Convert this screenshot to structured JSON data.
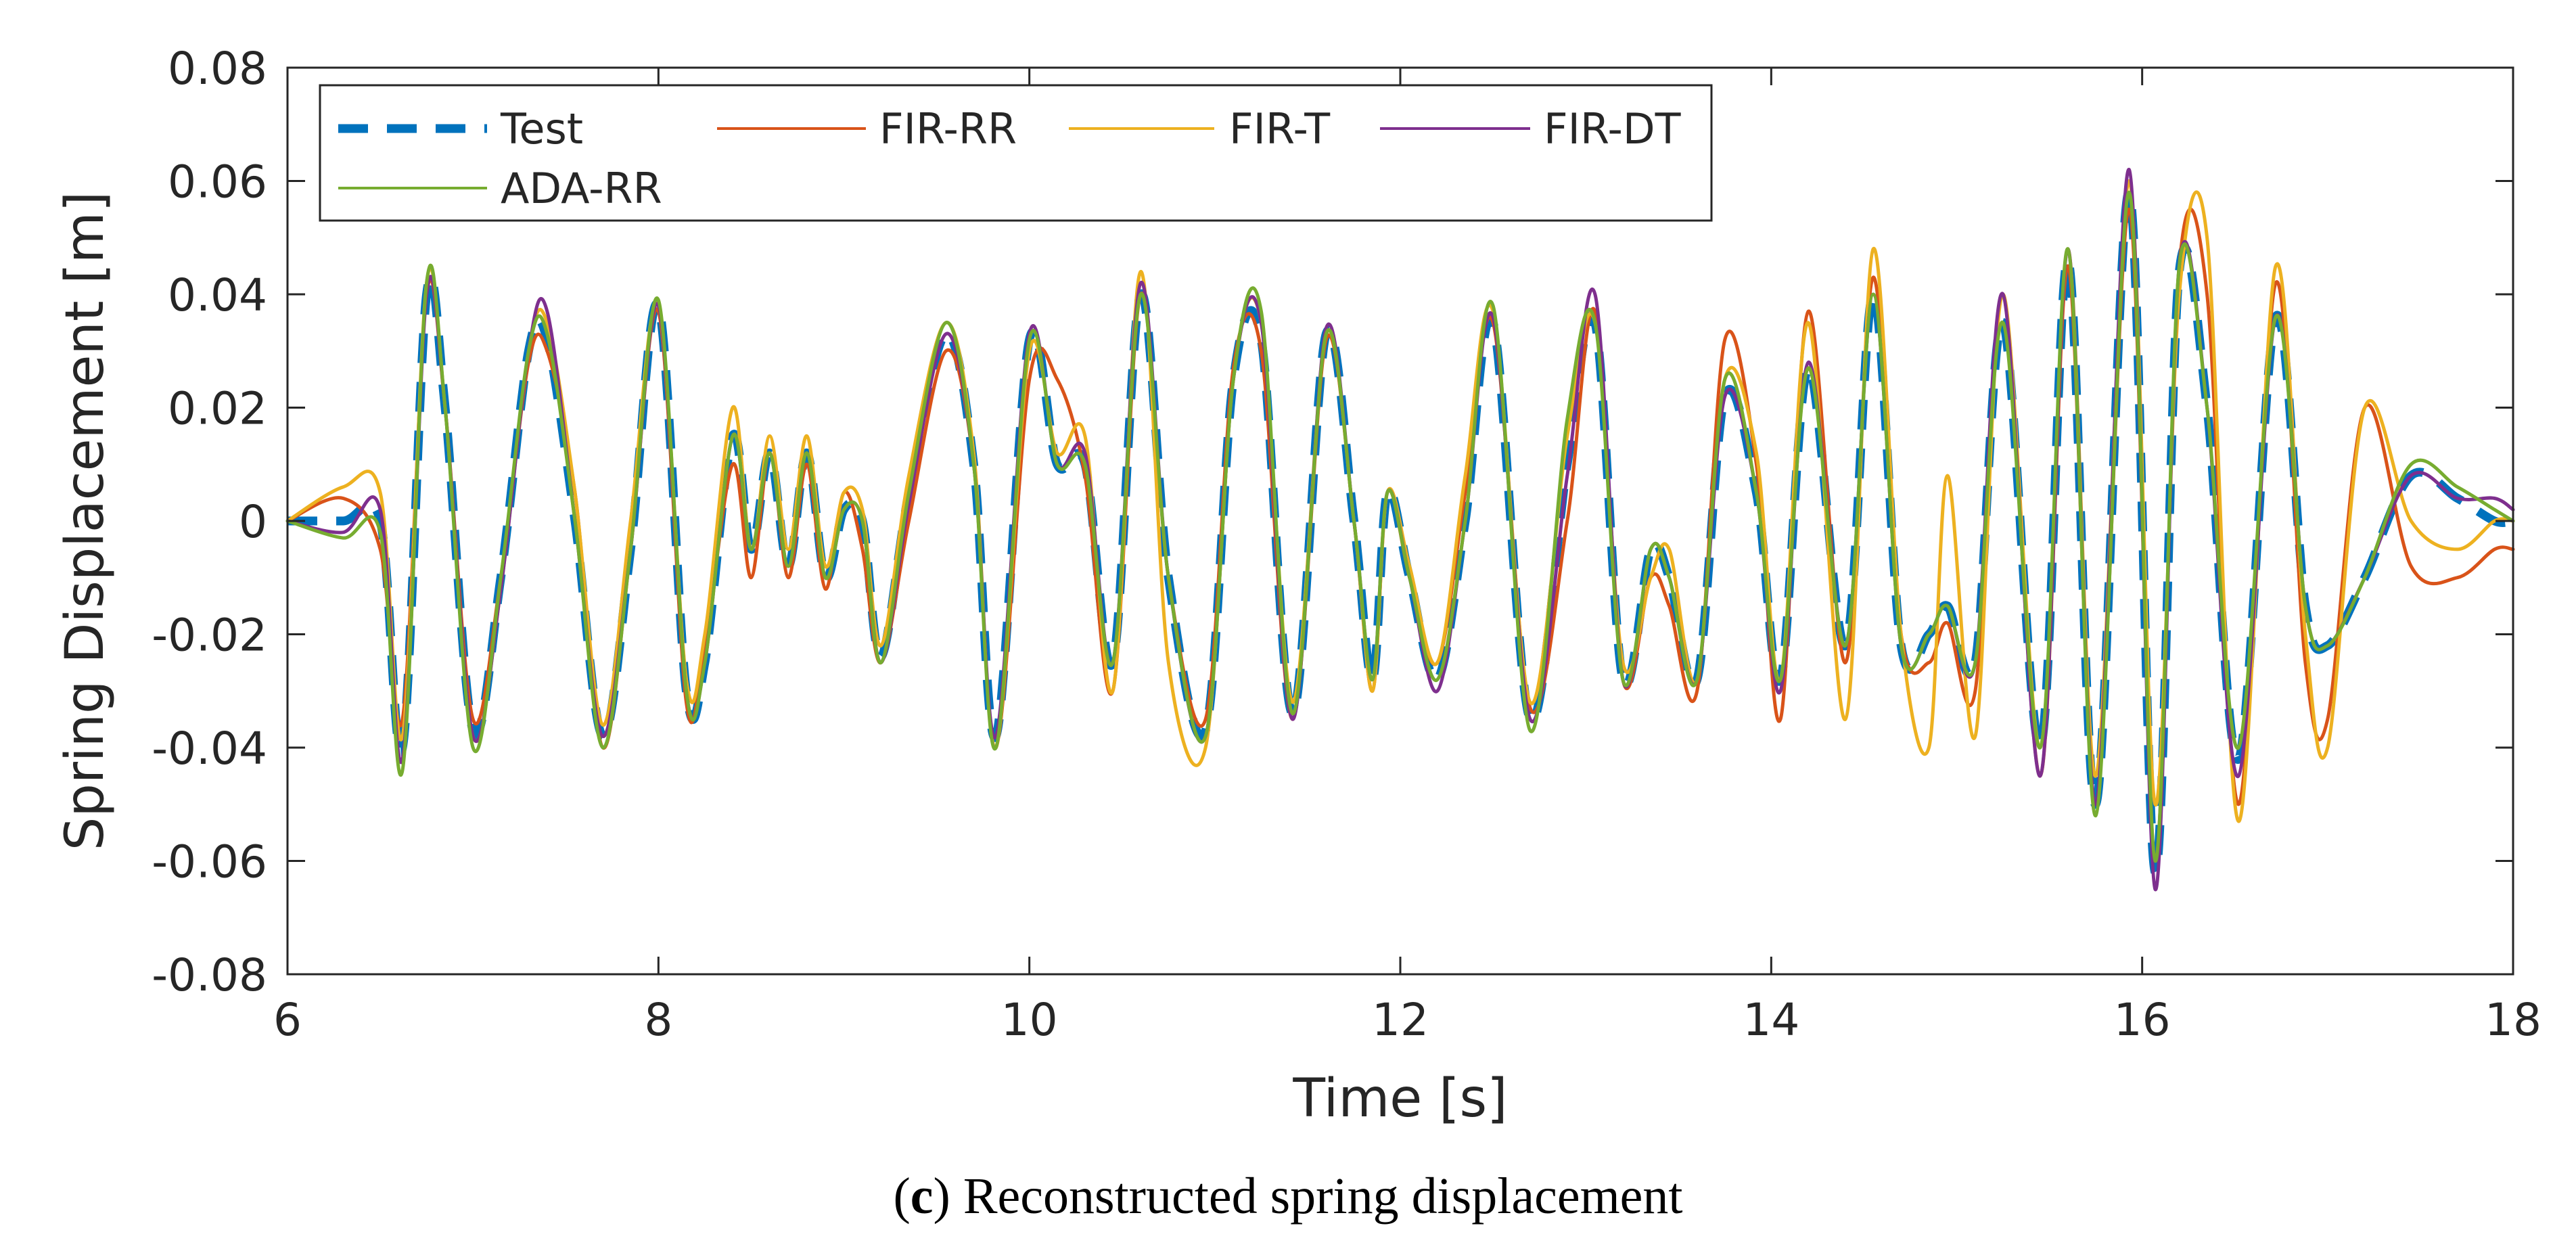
{
  "caption": {
    "letter": "c",
    "text": "Reconstructed spring displacement"
  },
  "chart_data": {
    "type": "line",
    "title": "",
    "xlabel": "Time [s]",
    "ylabel": "Spring Displacement [m]",
    "xlim": [
      6,
      18
    ],
    "ylim": [
      -0.08,
      0.08
    ],
    "xticks": [
      6,
      8,
      10,
      12,
      14,
      16,
      18
    ],
    "xtick_labels": [
      "6",
      "8",
      "10",
      "12",
      "14",
      "16",
      "18"
    ],
    "yticks": [
      -0.08,
      -0.06,
      -0.04,
      -0.02,
      0,
      0.02,
      0.04,
      0.06,
      0.08
    ],
    "ytick_labels": [
      "-0.08",
      "-0.06",
      "-0.04",
      "-0.02",
      "0",
      "0.02",
      "0.04",
      "0.06",
      "0.08"
    ],
    "grid": false,
    "legend_position": "top-left",
    "x": [
      6.0,
      6.3,
      6.5,
      6.62,
      6.75,
      6.85,
      7.0,
      7.15,
      7.3,
      7.4,
      7.55,
      7.7,
      7.85,
      8.0,
      8.15,
      8.25,
      8.4,
      8.5,
      8.6,
      8.7,
      8.8,
      8.9,
      9.0,
      9.1,
      9.2,
      9.35,
      9.55,
      9.7,
      9.82,
      10.0,
      10.15,
      10.3,
      10.45,
      10.6,
      10.75,
      10.95,
      11.1,
      11.25,
      11.42,
      11.6,
      11.75,
      11.85,
      11.93,
      12.05,
      12.2,
      12.35,
      12.5,
      12.7,
      12.9,
      13.05,
      13.2,
      13.35,
      13.45,
      13.6,
      13.75,
      13.92,
      14.05,
      14.2,
      14.4,
      14.55,
      14.7,
      14.85,
      14.95,
      15.1,
      15.25,
      15.45,
      15.6,
      15.75,
      15.93,
      16.07,
      16.2,
      16.35,
      16.52,
      16.72,
      16.88,
      17.0,
      17.2,
      17.45,
      17.7,
      17.9,
      18.0
    ],
    "series": [
      {
        "name": "Test",
        "color": "#0072BD",
        "style": "dashed",
        "values": [
          0.0,
          0.0,
          0.0,
          -0.04,
          0.04,
          0.02,
          -0.037,
          -0.01,
          0.03,
          0.032,
          0.0,
          -0.038,
          -0.005,
          0.038,
          -0.03,
          -0.025,
          0.015,
          -0.005,
          0.012,
          -0.008,
          0.012,
          -0.01,
          0.002,
          0.0,
          -0.024,
          0.005,
          0.033,
          0.01,
          -0.038,
          0.032,
          0.01,
          0.01,
          -0.025,
          0.04,
          -0.01,
          -0.037,
          0.025,
          0.032,
          -0.034,
          0.033,
          0.0,
          -0.028,
          0.005,
          -0.01,
          -0.028,
          0.0,
          0.035,
          -0.035,
          0.01,
          0.035,
          -0.028,
          -0.005,
          -0.01,
          -0.028,
          0.022,
          0.005,
          -0.028,
          0.027,
          -0.022,
          0.04,
          -0.022,
          -0.02,
          -0.015,
          -0.025,
          0.035,
          -0.04,
          0.046,
          -0.05,
          0.058,
          -0.062,
          0.044,
          0.02,
          -0.042,
          0.036,
          -0.015,
          -0.022,
          -0.01,
          0.008,
          0.004,
          0.0,
          0.0
        ]
      },
      {
        "name": "FIR-RR",
        "color": "#D95319",
        "style": "solid",
        "values": [
          0.0,
          0.004,
          -0.005,
          -0.035,
          0.04,
          0.02,
          -0.035,
          -0.01,
          0.028,
          0.03,
          0.005,
          -0.04,
          -0.005,
          0.037,
          -0.032,
          -0.022,
          0.01,
          -0.01,
          0.012,
          -0.01,
          0.01,
          -0.012,
          0.005,
          -0.005,
          -0.025,
          0.0,
          0.03,
          0.01,
          -0.04,
          0.025,
          0.025,
          0.008,
          -0.03,
          0.04,
          -0.01,
          -0.035,
          0.027,
          0.03,
          -0.035,
          0.032,
          0.0,
          -0.03,
          0.005,
          -0.01,
          -0.025,
          0.005,
          0.035,
          -0.033,
          0.0,
          0.037,
          -0.028,
          -0.01,
          -0.015,
          -0.03,
          0.032,
          0.01,
          -0.035,
          0.037,
          -0.025,
          0.043,
          -0.02,
          -0.025,
          -0.018,
          -0.03,
          0.04,
          -0.045,
          0.045,
          -0.05,
          0.055,
          -0.06,
          0.045,
          0.04,
          -0.05,
          0.042,
          -0.025,
          -0.035,
          0.02,
          -0.008,
          -0.01,
          -0.005,
          -0.005
        ]
      },
      {
        "name": "FIR-T",
        "color": "#EDB120",
        "style": "solid",
        "values": [
          0.0,
          0.006,
          0.005,
          -0.038,
          0.042,
          0.02,
          -0.038,
          -0.012,
          0.03,
          0.035,
          0.005,
          -0.036,
          0.0,
          0.038,
          -0.028,
          -0.02,
          0.02,
          -0.005,
          0.015,
          -0.005,
          0.015,
          -0.008,
          0.005,
          0.002,
          -0.022,
          0.008,
          0.035,
          0.012,
          -0.04,
          0.03,
          0.012,
          0.015,
          -0.03,
          0.044,
          -0.025,
          -0.04,
          0.025,
          0.035,
          -0.032,
          0.033,
          0.0,
          -0.03,
          0.005,
          -0.008,
          -0.025,
          0.008,
          0.037,
          -0.032,
          0.015,
          0.035,
          -0.025,
          -0.01,
          -0.005,
          -0.028,
          0.025,
          0.012,
          -0.028,
          0.035,
          -0.035,
          0.048,
          -0.02,
          -0.04,
          0.008,
          -0.038,
          0.04,
          -0.04,
          0.048,
          -0.045,
          0.06,
          -0.05,
          0.04,
          0.05,
          -0.053,
          0.045,
          -0.02,
          -0.04,
          0.02,
          0.0,
          -0.005,
          0.0,
          0.0
        ]
      },
      {
        "name": "FIR-DT",
        "color": "#7E2F8E",
        "style": "solid",
        "values": [
          0.0,
          -0.002,
          0.002,
          -0.042,
          0.04,
          0.02,
          -0.038,
          -0.012,
          0.03,
          0.037,
          0.0,
          -0.038,
          -0.005,
          0.038,
          -0.03,
          -0.025,
          0.015,
          -0.005,
          0.012,
          -0.008,
          0.012,
          -0.01,
          0.002,
          0.0,
          -0.025,
          0.003,
          0.033,
          0.01,
          -0.038,
          0.033,
          0.01,
          0.012,
          -0.025,
          0.042,
          -0.01,
          -0.038,
          0.025,
          0.035,
          -0.035,
          0.034,
          0.0,
          -0.028,
          0.005,
          -0.01,
          -0.03,
          0.0,
          0.036,
          -0.035,
          0.008,
          0.04,
          -0.028,
          -0.005,
          -0.01,
          -0.028,
          0.022,
          0.005,
          -0.03,
          0.028,
          -0.022,
          0.04,
          -0.022,
          -0.02,
          -0.015,
          -0.025,
          0.04,
          -0.045,
          0.048,
          -0.05,
          0.062,
          -0.065,
          0.045,
          0.02,
          -0.045,
          0.036,
          -0.015,
          -0.022,
          -0.01,
          0.008,
          0.004,
          0.004,
          0.002
        ]
      },
      {
        "name": "ADA-RR",
        "color": "#77AC30",
        "style": "solid",
        "values": [
          0.0,
          -0.003,
          -0.002,
          -0.044,
          0.042,
          0.02,
          -0.04,
          -0.01,
          0.03,
          0.033,
          0.0,
          -0.04,
          -0.005,
          0.039,
          -0.03,
          -0.025,
          0.015,
          -0.005,
          0.012,
          -0.008,
          0.012,
          -0.01,
          0.002,
          0.0,
          -0.025,
          0.005,
          0.035,
          0.01,
          -0.04,
          0.032,
          0.01,
          0.01,
          -0.025,
          0.04,
          -0.01,
          -0.038,
          0.025,
          0.037,
          -0.034,
          0.033,
          0.0,
          -0.028,
          0.005,
          -0.01,
          -0.028,
          0.0,
          0.038,
          -0.037,
          0.018,
          0.035,
          -0.028,
          -0.005,
          -0.01,
          -0.028,
          0.025,
          0.005,
          -0.028,
          0.027,
          -0.022,
          0.04,
          -0.022,
          -0.02,
          -0.015,
          -0.025,
          0.035,
          -0.04,
          0.048,
          -0.052,
          0.058,
          -0.06,
          0.045,
          0.02,
          -0.04,
          0.036,
          -0.015,
          -0.022,
          -0.01,
          0.01,
          0.006,
          0.002,
          0.0
        ]
      }
    ]
  }
}
